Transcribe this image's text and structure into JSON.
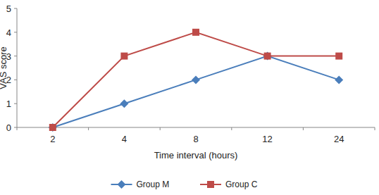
{
  "chart_data": {
    "type": "line",
    "x_label": "Time interval (hours)",
    "y_label": "VAS score",
    "categories": [
      "2",
      "4",
      "8",
      "12",
      "24"
    ],
    "series": [
      {
        "name": "Group M",
        "color": "#4a7ebb",
        "marker": "diamond",
        "values": [
          0,
          1,
          2,
          3,
          2
        ]
      },
      {
        "name": "Group C",
        "color": "#be4b48",
        "marker": "square",
        "values": [
          0,
          3,
          4,
          3,
          3
        ]
      }
    ],
    "ylim": [
      0,
      5
    ],
    "yticks": [
      0,
      1,
      2,
      3,
      4,
      5
    ],
    "grid": false,
    "legend": "bottom"
  }
}
